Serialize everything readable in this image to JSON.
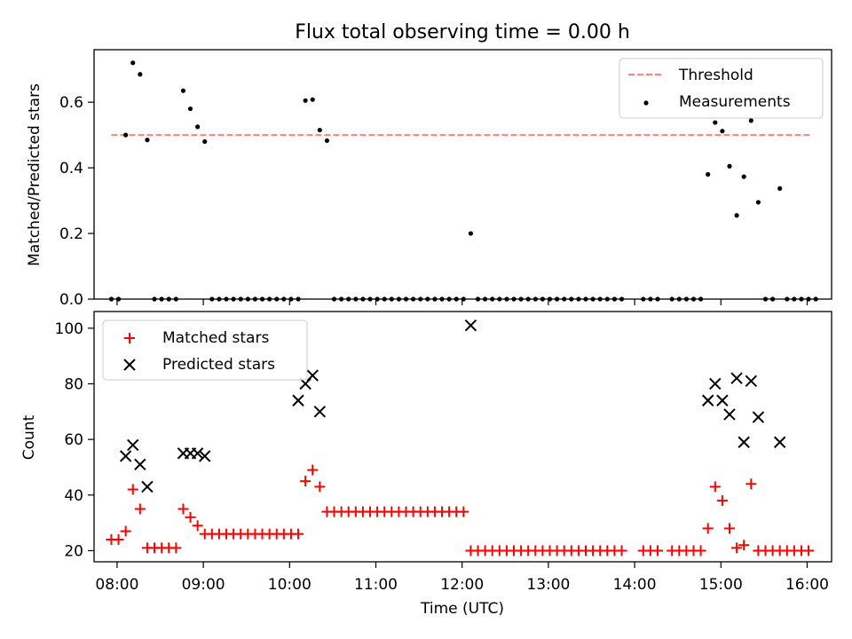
{
  "chart_data": [
    {
      "type": "scatter",
      "title": "Flux total observing time = 0.00 h",
      "xlabel": "",
      "ylabel": "Matched/Predicted stars",
      "xlim": [
        "07:44",
        "16:17"
      ],
      "ylim": [
        0,
        0.76
      ],
      "yticks": [
        0.0,
        0.2,
        0.4,
        0.6
      ],
      "ytick_labels": [
        "0.0",
        "0.2",
        "0.4",
        "0.6"
      ],
      "legend_position": "upper right",
      "threshold": {
        "name": "Threshold",
        "value": 0.5,
        "x_range": [
          "07:56",
          "16:03"
        ],
        "color": "#ff8080",
        "style": "dashed"
      },
      "series": [
        {
          "name": "Measurements",
          "marker": "dot",
          "color": "#000000",
          "points": [
            [
              "07:56",
              0.0
            ],
            [
              "08:01",
              0.0
            ],
            [
              "08:06",
              0.5
            ],
            [
              "08:11",
              0.72
            ],
            [
              "08:16",
              0.685
            ],
            [
              "08:21",
              0.485
            ],
            [
              "08:26",
              0.0
            ],
            [
              "08:31",
              0.0
            ],
            [
              "08:36",
              0.0
            ],
            [
              "08:41",
              0.0
            ],
            [
              "08:46",
              0.635
            ],
            [
              "08:51",
              0.58
            ],
            [
              "08:56",
              0.525
            ],
            [
              "09:01",
              0.48
            ],
            [
              "09:06",
              0.0
            ],
            [
              "09:11",
              0.0
            ],
            [
              "09:16",
              0.0
            ],
            [
              "09:21",
              0.0
            ],
            [
              "09:26",
              0.0
            ],
            [
              "09:31",
              0.0
            ],
            [
              "09:36",
              0.0
            ],
            [
              "09:41",
              0.0
            ],
            [
              "09:46",
              0.0
            ],
            [
              "09:51",
              0.0
            ],
            [
              "09:56",
              0.0
            ],
            [
              "10:01",
              0.0
            ],
            [
              "10:06",
              0.0
            ],
            [
              "10:11",
              0.605
            ],
            [
              "10:16",
              0.608
            ],
            [
              "10:21",
              0.515
            ],
            [
              "10:26",
              0.483
            ],
            [
              "10:31",
              0.0
            ],
            [
              "10:36",
              0.0
            ],
            [
              "10:41",
              0.0
            ],
            [
              "10:46",
              0.0
            ],
            [
              "10:51",
              0.0
            ],
            [
              "10:56",
              0.0
            ],
            [
              "11:01",
              0.0
            ],
            [
              "11:06",
              0.0
            ],
            [
              "11:11",
              0.0
            ],
            [
              "11:16",
              0.0
            ],
            [
              "11:21",
              0.0
            ],
            [
              "11:26",
              0.0
            ],
            [
              "11:31",
              0.0
            ],
            [
              "11:36",
              0.0
            ],
            [
              "11:41",
              0.0
            ],
            [
              "11:46",
              0.0
            ],
            [
              "11:51",
              0.0
            ],
            [
              "11:56",
              0.0
            ],
            [
              "12:01",
              0.0
            ],
            [
              "12:06",
              0.2
            ],
            [
              "12:11",
              0.0
            ],
            [
              "12:16",
              0.0
            ],
            [
              "12:21",
              0.0
            ],
            [
              "12:26",
              0.0
            ],
            [
              "12:31",
              0.0
            ],
            [
              "12:36",
              0.0
            ],
            [
              "12:41",
              0.0
            ],
            [
              "12:46",
              0.0
            ],
            [
              "12:51",
              0.0
            ],
            [
              "12:56",
              0.0
            ],
            [
              "13:01",
              0.0
            ],
            [
              "13:06",
              0.0
            ],
            [
              "13:11",
              0.0
            ],
            [
              "13:16",
              0.0
            ],
            [
              "13:21",
              0.0
            ],
            [
              "13:26",
              0.0
            ],
            [
              "13:31",
              0.0
            ],
            [
              "13:36",
              0.0
            ],
            [
              "13:41",
              0.0
            ],
            [
              "13:46",
              0.0
            ],
            [
              "13:51",
              0.0
            ],
            [
              "14:06",
              0.0
            ],
            [
              "14:11",
              0.0
            ],
            [
              "14:16",
              0.0
            ],
            [
              "14:26",
              0.0
            ],
            [
              "14:31",
              0.0
            ],
            [
              "14:36",
              0.0
            ],
            [
              "14:41",
              0.0
            ],
            [
              "14:46",
              0.0
            ],
            [
              "14:51",
              0.38
            ],
            [
              "14:56",
              0.538
            ],
            [
              "15:01",
              0.512
            ],
            [
              "15:06",
              0.405
            ],
            [
              "15:11",
              0.255
            ],
            [
              "15:16",
              0.373
            ],
            [
              "15:21",
              0.544
            ],
            [
              "15:26",
              0.295
            ],
            [
              "15:31",
              0.0
            ],
            [
              "15:36",
              0.0
            ],
            [
              "15:41",
              0.337
            ],
            [
              "15:46",
              0.0
            ],
            [
              "15:51",
              0.0
            ],
            [
              "15:56",
              0.0
            ],
            [
              "16:01",
              0.0
            ],
            [
              "16:06",
              0.0
            ]
          ]
        }
      ]
    },
    {
      "type": "scatter",
      "title": "",
      "xlabel": "Time (UTC)",
      "ylabel": "Count",
      "xlim": [
        "07:44",
        "16:17"
      ],
      "ylim": [
        16,
        106
      ],
      "xticks": [
        "08:00",
        "09:00",
        "10:00",
        "11:00",
        "12:00",
        "13:00",
        "14:00",
        "15:00",
        "16:00"
      ],
      "yticks": [
        20,
        40,
        60,
        80,
        100
      ],
      "legend_position": "upper left",
      "series": [
        {
          "name": "Matched stars",
          "marker": "plus",
          "color": "#ff0000",
          "points": [
            [
              "07:56",
              24
            ],
            [
              "08:01",
              24
            ],
            [
              "08:06",
              27
            ],
            [
              "08:11",
              42
            ],
            [
              "08:16",
              35
            ],
            [
              "08:21",
              21
            ],
            [
              "08:26",
              21
            ],
            [
              "08:31",
              21
            ],
            [
              "08:36",
              21
            ],
            [
              "08:41",
              21
            ],
            [
              "08:46",
              35
            ],
            [
              "08:51",
              32
            ],
            [
              "08:56",
              29
            ],
            [
              "09:01",
              26
            ],
            [
              "09:06",
              26
            ],
            [
              "09:11",
              26
            ],
            [
              "09:16",
              26
            ],
            [
              "09:21",
              26
            ],
            [
              "09:26",
              26
            ],
            [
              "09:31",
              26
            ],
            [
              "09:36",
              26
            ],
            [
              "09:41",
              26
            ],
            [
              "09:46",
              26
            ],
            [
              "09:51",
              26
            ],
            [
              "09:56",
              26
            ],
            [
              "10:01",
              26
            ],
            [
              "10:06",
              26
            ],
            [
              "10:11",
              45
            ],
            [
              "10:16",
              49
            ],
            [
              "10:21",
              43
            ],
            [
              "10:26",
              34
            ],
            [
              "10:31",
              34
            ],
            [
              "10:36",
              34
            ],
            [
              "10:41",
              34
            ],
            [
              "10:46",
              34
            ],
            [
              "10:51",
              34
            ],
            [
              "10:56",
              34
            ],
            [
              "11:01",
              34
            ],
            [
              "11:06",
              34
            ],
            [
              "11:11",
              34
            ],
            [
              "11:16",
              34
            ],
            [
              "11:21",
              34
            ],
            [
              "11:26",
              34
            ],
            [
              "11:31",
              34
            ],
            [
              "11:36",
              34
            ],
            [
              "11:41",
              34
            ],
            [
              "11:46",
              34
            ],
            [
              "11:51",
              34
            ],
            [
              "11:56",
              34
            ],
            [
              "12:01",
              34
            ],
            [
              "12:06",
              20
            ],
            [
              "12:11",
              20
            ],
            [
              "12:16",
              20
            ],
            [
              "12:21",
              20
            ],
            [
              "12:26",
              20
            ],
            [
              "12:31",
              20
            ],
            [
              "12:36",
              20
            ],
            [
              "12:41",
              20
            ],
            [
              "12:46",
              20
            ],
            [
              "12:51",
              20
            ],
            [
              "12:56",
              20
            ],
            [
              "13:01",
              20
            ],
            [
              "13:06",
              20
            ],
            [
              "13:11",
              20
            ],
            [
              "13:16",
              20
            ],
            [
              "13:21",
              20
            ],
            [
              "13:26",
              20
            ],
            [
              "13:31",
              20
            ],
            [
              "13:36",
              20
            ],
            [
              "13:41",
              20
            ],
            [
              "13:46",
              20
            ],
            [
              "13:51",
              20
            ],
            [
              "14:06",
              20
            ],
            [
              "14:11",
              20
            ],
            [
              "14:16",
              20
            ],
            [
              "14:26",
              20
            ],
            [
              "14:31",
              20
            ],
            [
              "14:36",
              20
            ],
            [
              "14:41",
              20
            ],
            [
              "14:46",
              20
            ],
            [
              "14:51",
              28
            ],
            [
              "14:56",
              43
            ],
            [
              "15:01",
              38
            ],
            [
              "15:06",
              28
            ],
            [
              "15:11",
              21
            ],
            [
              "15:16",
              22
            ],
            [
              "15:21",
              44
            ],
            [
              "15:26",
              20
            ],
            [
              "15:31",
              20
            ],
            [
              "15:36",
              20
            ],
            [
              "15:41",
              20
            ],
            [
              "15:46",
              20
            ],
            [
              "15:51",
              20
            ],
            [
              "15:56",
              20
            ],
            [
              "16:01",
              20
            ]
          ]
        },
        {
          "name": "Predicted stars",
          "marker": "x",
          "color": "#000000",
          "points": [
            [
              "08:06",
              54
            ],
            [
              "08:11",
              58
            ],
            [
              "08:16",
              51
            ],
            [
              "08:21",
              43
            ],
            [
              "08:46",
              55
            ],
            [
              "08:51",
              55
            ],
            [
              "08:56",
              55
            ],
            [
              "09:01",
              54
            ],
            [
              "10:06",
              74
            ],
            [
              "10:11",
              80
            ],
            [
              "10:16",
              83
            ],
            [
              "10:21",
              70
            ],
            [
              "12:06",
              101
            ],
            [
              "14:51",
              74
            ],
            [
              "14:56",
              80
            ],
            [
              "15:01",
              74
            ],
            [
              "15:06",
              69
            ],
            [
              "15:11",
              82
            ],
            [
              "15:16",
              59
            ],
            [
              "15:21",
              81
            ],
            [
              "15:26",
              68
            ],
            [
              "15:41",
              59
            ]
          ]
        }
      ]
    }
  ]
}
